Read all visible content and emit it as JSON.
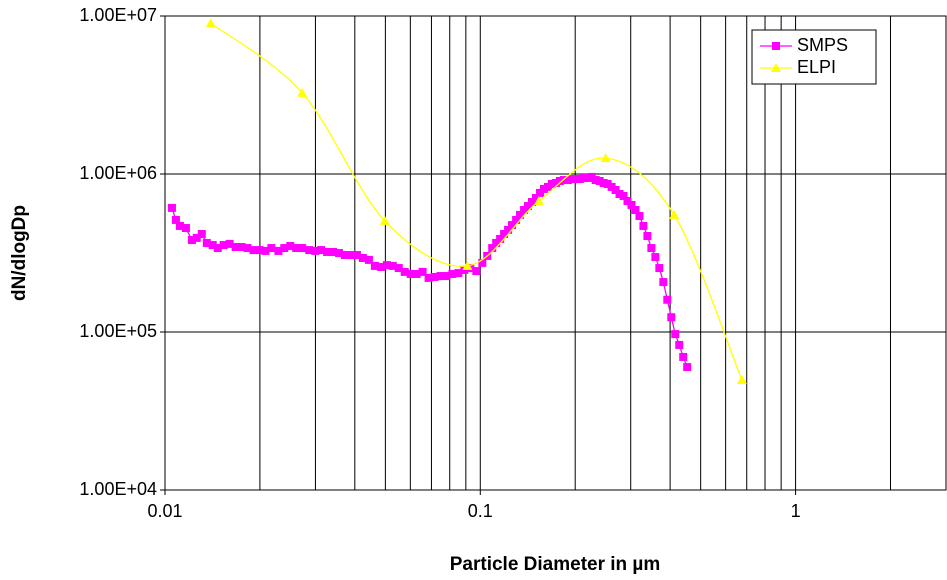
{
  "chart_data": {
    "type": "scatter",
    "x_label": "Particle Diameter in µm",
    "y_label": "dN/dlogDp",
    "x_scale": "log",
    "y_scale": "log",
    "grid": true,
    "legend": "top-right",
    "xlim": [
      0.01,
      3
    ],
    "xticks": [
      0.01,
      0.1,
      1
    ],
    "xminor_ticks": [
      0.02,
      0.03,
      0.04,
      0.05,
      0.06,
      0.07,
      0.08,
      0.09,
      0.2,
      0.3,
      0.4,
      0.5,
      0.6,
      0.7,
      0.8,
      0.9,
      2
    ],
    "ylim": [
      10000,
      10000000
    ],
    "yticks": [
      {
        "value": 10000,
        "label": "1.00E+04"
      },
      {
        "value": 100000,
        "label": "1.00E+05"
      },
      {
        "value": 1000000,
        "label": "1.00E+06"
      },
      {
        "value": 10000000,
        "label": "1.00E+07"
      }
    ],
    "series": [
      {
        "name": "SMPS",
        "color": "#ff00ff",
        "marker": "square",
        "smooth": false,
        "x": [
          0.01052,
          0.01083,
          0.01115,
          0.01165,
          0.01217,
          0.01261,
          0.01308,
          0.01357,
          0.01417,
          0.0147,
          0.01535,
          0.01603,
          0.01675,
          0.0175,
          0.01827,
          0.01909,
          0.01994,
          0.02083,
          0.02175,
          0.02289,
          0.0239,
          0.02497,
          0.02608,
          0.02724,
          0.02867,
          0.02995,
          0.03128,
          0.03268,
          0.03413,
          0.03565,
          0.03724,
          0.0389,
          0.04063,
          0.04244,
          0.04434,
          0.04631,
          0.04837,
          0.05053,
          0.05278,
          0.05513,
          0.05759,
          0.06015,
          0.06283,
          0.06562,
          0.06855,
          0.0716,
          0.07479,
          0.07812,
          0.0816,
          0.08523,
          0.08903,
          0.093,
          0.09714,
          0.1015,
          0.1052,
          0.1091,
          0.1123,
          0.1156,
          0.119,
          0.1225,
          0.1261,
          0.1299,
          0.1337,
          0.1377,
          0.1417,
          0.1459,
          0.1502,
          0.1547,
          0.1592,
          0.1639,
          0.1687,
          0.1737,
          0.1788,
          0.1841,
          0.1896,
          0.1951,
          0.2009,
          0.2068,
          0.2129,
          0.2192,
          0.2256,
          0.2323,
          0.2391,
          0.2462,
          0.2534,
          0.2609,
          0.2686,
          0.2765,
          0.2847,
          0.2931,
          0.3017,
          0.3106,
          0.3198,
          0.3292,
          0.3389,
          0.3489,
          0.3592,
          0.3698,
          0.3807,
          0.3919,
          0.4035,
          0.4154,
          0.4276,
          0.4402,
          0.4532
        ],
        "values": [
          610000,
          512000,
          469000,
          455000,
          382000,
          394000,
          417000,
          366000,
          355000,
          340000,
          355000,
          361000,
          345000,
          345000,
          340000,
          330000,
          330000,
          326000,
          340000,
          326000,
          340000,
          350000,
          340000,
          340000,
          330000,
          326000,
          330000,
          321000,
          321000,
          316000,
          307000,
          307000,
          307000,
          294000,
          286000,
          262000,
          258000,
          265000,
          262000,
          254000,
          240000,
          233000,
          233000,
          240000,
          220000,
          223000,
          226000,
          226000,
          233000,
          236000,
          247000,
          254000,
          243000,
          274000,
          303000,
          340000,
          366000,
          388000,
          417000,
          443000,
          475000,
          512000,
          551000,
          592000,
          627000,
          665000,
          705000,
          759000,
          804000,
          828000,
          865000,
          877000,
          903000,
          916000,
          916000,
          929000,
          929000,
          929000,
          944000,
          944000,
          958000,
          916000,
          903000,
          877000,
          865000,
          828000,
          792000,
          747000,
          726000,
          675000,
          637000,
          592000,
          542000,
          469000,
          405000,
          340000,
          298000,
          254000,
          207000,
          160000,
          124000,
          97000,
          82800,
          69500,
          60000
        ]
      },
      {
        "name": "ELPI",
        "color": "#ffff00",
        "marker": "triangle",
        "smooth": true,
        "x": [
          0.01397,
          0.02724,
          0.0498,
          0.091,
          0.1535,
          0.2497,
          0.4121,
          0.676
        ],
        "values": [
          9000000,
          3260000,
          505000,
          262000,
          675000,
          1260000,
          551000,
          49700
        ]
      }
    ]
  }
}
